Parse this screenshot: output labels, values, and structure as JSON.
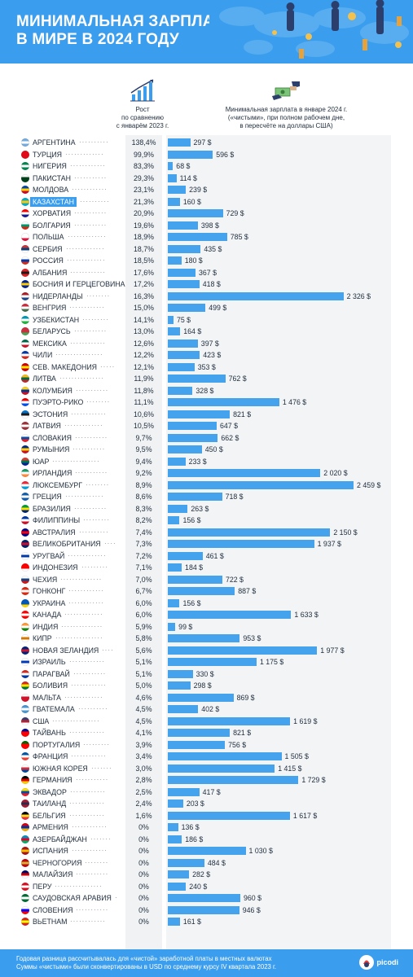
{
  "header": {
    "title_line1": "МИНИМАЛЬНАЯ ЗАРПЛАТА",
    "title_line2": "В МИРЕ В 2024 ГОДУ"
  },
  "columns": {
    "growth_label": "Рост\nпо сравнению\nс январём 2023 г.",
    "wage_label": "Минимальная зарплата в январе 2024 г.\n(«чистыми», при полном рабочем дне,\nв пересчёте на доллары США)"
  },
  "highlight_color": "#3b9ded",
  "bar_color": "#45a3ee",
  "chart_data": {
    "type": "bar",
    "x_max": 2459,
    "rows": [
      {
        "country": "АРГЕНТИНА",
        "growth": "138,4%",
        "wage": 297,
        "wage_label": "297 $",
        "flag": [
          "#74acdf",
          "#ffffff",
          "#74acdf"
        ]
      },
      {
        "country": "ТУРЦИЯ",
        "growth": "99,9%",
        "wage": 596,
        "wage_label": "596 $",
        "flag": [
          "#e30a17",
          "#e30a17",
          "#e30a17"
        ]
      },
      {
        "country": "НИГЕРИЯ",
        "growth": "83,3%",
        "wage": 68,
        "wage_label": "68 $",
        "flag": [
          "#008751",
          "#ffffff",
          "#008751"
        ]
      },
      {
        "country": "ПАКИСТАН",
        "growth": "29,3%",
        "wage": 114,
        "wage_label": "114 $",
        "flag": [
          "#ffffff",
          "#01411c",
          "#01411c"
        ]
      },
      {
        "country": "МОЛДОВА",
        "growth": "23,1%",
        "wage": 239,
        "wage_label": "239 $",
        "flag": [
          "#0046ae",
          "#ffd200",
          "#cc092f"
        ]
      },
      {
        "country": "КАЗАХСТАН",
        "growth": "21,3%",
        "wage": 160,
        "wage_label": "160 $",
        "highlight": true,
        "flag": [
          "#00afca",
          "#fec50c",
          "#00afca"
        ]
      },
      {
        "country": "ХОРВАТИЯ",
        "growth": "20,9%",
        "wage": 729,
        "wage_label": "729 $",
        "flag": [
          "#ff0000",
          "#ffffff",
          "#171796"
        ]
      },
      {
        "country": "БОЛГАРИЯ",
        "growth": "19,6%",
        "wage": 398,
        "wage_label": "398 $",
        "flag": [
          "#ffffff",
          "#00966e",
          "#d62612"
        ]
      },
      {
        "country": "ПОЛЬША",
        "growth": "18,9%",
        "wage": 785,
        "wage_label": "785 $",
        "flag": [
          "#ffffff",
          "#ffffff",
          "#dc143c"
        ]
      },
      {
        "country": "СЕРБИЯ",
        "growth": "18,7%",
        "wage": 435,
        "wage_label": "435 $",
        "flag": [
          "#c6363c",
          "#0c4076",
          "#ffffff"
        ]
      },
      {
        "country": "РОССИЯ",
        "growth": "18,5%",
        "wage": 180,
        "wage_label": "180 $",
        "flag": [
          "#ffffff",
          "#0039a6",
          "#d52b1e"
        ]
      },
      {
        "country": "АЛБАНИЯ",
        "growth": "17,6%",
        "wage": 367,
        "wage_label": "367 $",
        "flag": [
          "#e41e20",
          "#1a1a1a",
          "#e41e20"
        ]
      },
      {
        "country": "БОСНИЯ И ГЕРЦЕГОВИНА",
        "growth": "17,2%",
        "wage": 418,
        "wage_label": "418 $",
        "flag": [
          "#002395",
          "#fecb00",
          "#002395"
        ]
      },
      {
        "country": "НИДЕРЛАНДЫ",
        "growth": "16,3%",
        "wage": 2326,
        "wage_label": "2 326 $",
        "flag": [
          "#ae1c28",
          "#ffffff",
          "#21468b"
        ]
      },
      {
        "country": "ВЕНГРИЯ",
        "growth": "15,0%",
        "wage": 499,
        "wage_label": "499 $",
        "flag": [
          "#cd2a3e",
          "#ffffff",
          "#436f4d"
        ]
      },
      {
        "country": "УЗБЕКИСТАН",
        "growth": "14,1%",
        "wage": 75,
        "wage_label": "75 $",
        "flag": [
          "#0099b5",
          "#ffffff",
          "#1eb53a"
        ]
      },
      {
        "country": "БЕЛАРУСЬ",
        "growth": "13,0%",
        "wage": 164,
        "wage_label": "164 $",
        "flag": [
          "#c8313e",
          "#c8313e",
          "#4aa657"
        ]
      },
      {
        "country": "МЕКСИКА",
        "growth": "12,6%",
        "wage": 397,
        "wage_label": "397 $",
        "flag": [
          "#006847",
          "#ffffff",
          "#ce1126"
        ]
      },
      {
        "country": "ЧИЛИ",
        "growth": "12,2%",
        "wage": 423,
        "wage_label": "423 $",
        "flag": [
          "#0039a6",
          "#ffffff",
          "#d52b1e"
        ]
      },
      {
        "country": "СЕВ. МАКЕДОНИЯ",
        "growth": "12,1%",
        "wage": 353,
        "wage_label": "353 $",
        "flag": [
          "#d20000",
          "#ffe600",
          "#d20000"
        ]
      },
      {
        "country": "ЛИТВА",
        "growth": "11,9%",
        "wage": 762,
        "wage_label": "762 $",
        "flag": [
          "#fdb913",
          "#006a44",
          "#c1272d"
        ]
      },
      {
        "country": "КОЛУМБИЯ",
        "growth": "11,8%",
        "wage": 328,
        "wage_label": "328 $",
        "flag": [
          "#fcd116",
          "#003893",
          "#ce1126"
        ]
      },
      {
        "country": "ПУЭРТО-РИКО",
        "growth": "11,1%",
        "wage": 1476,
        "wage_label": "1 476 $",
        "flag": [
          "#ed0000",
          "#ffffff",
          "#0050f0"
        ]
      },
      {
        "country": "ЭСТОНИЯ",
        "growth": "10,6%",
        "wage": 821,
        "wage_label": "821 $",
        "flag": [
          "#0072ce",
          "#1a1a1a",
          "#ffffff"
        ]
      },
      {
        "country": "ЛАТВИЯ",
        "growth": "10,5%",
        "wage": 647,
        "wage_label": "647 $",
        "flag": [
          "#9e3039",
          "#ffffff",
          "#9e3039"
        ]
      },
      {
        "country": "СЛОВАКИЯ",
        "growth": "9,7%",
        "wage": 662,
        "wage_label": "662 $",
        "flag": [
          "#ffffff",
          "#0b4ea2",
          "#ee1c25"
        ]
      },
      {
        "country": "РУМЫНИЯ",
        "growth": "9,5%",
        "wage": 450,
        "wage_label": "450 $",
        "flag": [
          "#002b7f",
          "#fcd116",
          "#ce1126"
        ]
      },
      {
        "country": "ЮАР",
        "growth": "9,4%",
        "wage": 233,
        "wage_label": "233 $",
        "flag": [
          "#de3831",
          "#007a4d",
          "#002395"
        ]
      },
      {
        "country": "ИРЛАНДИЯ",
        "growth": "9,2%",
        "wage": 2020,
        "wage_label": "2 020 $",
        "flag": [
          "#169b62",
          "#ffffff",
          "#ff883e"
        ]
      },
      {
        "country": "ЛЮКСЕМБУРГ",
        "growth": "8,9%",
        "wage": 2459,
        "wage_label": "2 459 $",
        "flag": [
          "#ed2939",
          "#ffffff",
          "#00a1de"
        ]
      },
      {
        "country": "ГРЕЦИЯ",
        "growth": "8,6%",
        "wage": 718,
        "wage_label": "718 $",
        "flag": [
          "#0d5eaf",
          "#ffffff",
          "#0d5eaf"
        ]
      },
      {
        "country": "БРАЗИЛИЯ",
        "growth": "8,3%",
        "wage": 263,
        "wage_label": "263 $",
        "flag": [
          "#009c3b",
          "#ffdf00",
          "#002776"
        ]
      },
      {
        "country": "ФИЛИППИНЫ",
        "growth": "8,2%",
        "wage": 156,
        "wage_label": "156 $",
        "flag": [
          "#0038a8",
          "#ffffff",
          "#ce1126"
        ]
      },
      {
        "country": "АВСТРАЛИЯ",
        "growth": "7,4%",
        "wage": 2150,
        "wage_label": "2 150 $",
        "flag": [
          "#00008b",
          "#ff0000",
          "#00008b"
        ]
      },
      {
        "country": "ВЕЛИКОБРИТАНИЯ",
        "growth": "7,3%",
        "wage": 1937,
        "wage_label": "1 937 $",
        "flag": [
          "#012169",
          "#c8102e",
          "#012169"
        ]
      },
      {
        "country": "УРУГВАЙ",
        "growth": "7,2%",
        "wage": 461,
        "wage_label": "461 $",
        "flag": [
          "#ffffff",
          "#0038a8",
          "#ffffff"
        ]
      },
      {
        "country": "ИНДОНЕЗИЯ",
        "growth": "7,1%",
        "wage": 184,
        "wage_label": "184 $",
        "flag": [
          "#ff0000",
          "#ff0000",
          "#ffffff"
        ]
      },
      {
        "country": "ЧЕХИЯ",
        "growth": "7,0%",
        "wage": 722,
        "wage_label": "722 $",
        "flag": [
          "#ffffff",
          "#11457e",
          "#d7141a"
        ]
      },
      {
        "country": "ГОНКОНГ",
        "growth": "6,7%",
        "wage": 887,
        "wage_label": "887 $",
        "flag": [
          "#de2910",
          "#ffffff",
          "#de2910"
        ]
      },
      {
        "country": "УКРАИНА",
        "growth": "6,0%",
        "wage": 156,
        "wage_label": "156 $",
        "flag": [
          "#0057b7",
          "#0057b7",
          "#ffd700"
        ]
      },
      {
        "country": "КАНАДА",
        "growth": "6,0%",
        "wage": 1633,
        "wage_label": "1 633 $",
        "flag": [
          "#ff0000",
          "#ffffff",
          "#ff0000"
        ]
      },
      {
        "country": "ИНДИЯ",
        "growth": "5,9%",
        "wage": 99,
        "wage_label": "99 $",
        "flag": [
          "#ff9933",
          "#ffffff",
          "#138808"
        ]
      },
      {
        "country": "КИПР",
        "growth": "5,8%",
        "wage": 953,
        "wage_label": "953 $",
        "flag": [
          "#ffffff",
          "#d57800",
          "#ffffff"
        ]
      },
      {
        "country": "НОВАЯ ЗЕЛАНДИЯ",
        "growth": "5,6%",
        "wage": 1977,
        "wage_label": "1 977 $",
        "flag": [
          "#00247d",
          "#cc142b",
          "#00247d"
        ]
      },
      {
        "country": "ИЗРАИЛЬ",
        "growth": "5,1%",
        "wage": 1175,
        "wage_label": "1 175 $",
        "flag": [
          "#ffffff",
          "#0038b8",
          "#ffffff"
        ]
      },
      {
        "country": "ПАРАГВАЙ",
        "growth": "5,1%",
        "wage": 330,
        "wage_label": "330 $",
        "flag": [
          "#d52b1e",
          "#ffffff",
          "#0038a8"
        ]
      },
      {
        "country": "БОЛИВИЯ",
        "growth": "5,0%",
        "wage": 298,
        "wage_label": "298 $",
        "flag": [
          "#d52b1e",
          "#f9e300",
          "#007934"
        ]
      },
      {
        "country": "МАЛЬТА",
        "growth": "4,6%",
        "wage": 869,
        "wage_label": "869 $",
        "flag": [
          "#ffffff",
          "#cf142b",
          "#cf142b"
        ]
      },
      {
        "country": "ГВАТЕМАЛА",
        "growth": "4,5%",
        "wage": 402,
        "wage_label": "402 $",
        "flag": [
          "#4997d0",
          "#ffffff",
          "#4997d0"
        ]
      },
      {
        "country": "США",
        "growth": "4,5%",
        "wage": 1619,
        "wage_label": "1 619 $",
        "flag": [
          "#3c3b6e",
          "#b22234",
          "#ffffff"
        ]
      },
      {
        "country": "ТАЙВАНЬ",
        "growth": "4,1%",
        "wage": 821,
        "wage_label": "821 $",
        "flag": [
          "#000095",
          "#fe0000",
          "#fe0000"
        ]
      },
      {
        "country": "ПОРТУГАЛИЯ",
        "growth": "3,9%",
        "wage": 756,
        "wage_label": "756 $",
        "flag": [
          "#006600",
          "#ff0000",
          "#ff0000"
        ]
      },
      {
        "country": "ФРАНЦИЯ",
        "growth": "3,4%",
        "wage": 1505,
        "wage_label": "1 505 $",
        "flag": [
          "#0055a4",
          "#ffffff",
          "#ef4135"
        ]
      },
      {
        "country": "ЮЖНАЯ КОРЕЯ",
        "growth": "3,0%",
        "wage": 1415,
        "wage_label": "1 415 $",
        "flag": [
          "#ffffff",
          "#cd2e3a",
          "#0047a0"
        ]
      },
      {
        "country": "ГЕРМАНИЯ",
        "growth": "2,8%",
        "wage": 1729,
        "wage_label": "1 729 $",
        "flag": [
          "#000000",
          "#dd0000",
          "#ffce00"
        ]
      },
      {
        "country": "ЭКВАДОР",
        "growth": "2,5%",
        "wage": 417,
        "wage_label": "417 $",
        "flag": [
          "#ffdd00",
          "#034ea2",
          "#ed1c24"
        ]
      },
      {
        "country": "ТАИЛАНД",
        "growth": "2,4%",
        "wage": 203,
        "wage_label": "203 $",
        "flag": [
          "#a51931",
          "#2d2a4a",
          "#a51931"
        ]
      },
      {
        "country": "БЕЛЬГИЯ",
        "growth": "1,6%",
        "wage": 1617,
        "wage_label": "1 617 $",
        "flag": [
          "#000000",
          "#fdda24",
          "#ef3340"
        ]
      },
      {
        "country": "АРМЕНИЯ",
        "growth": "0%",
        "wage": 136,
        "wage_label": "136 $",
        "flag": [
          "#d90012",
          "#0033a0",
          "#f2a800"
        ]
      },
      {
        "country": "АЗЕРБАЙДЖАН",
        "growth": "0%",
        "wage": 186,
        "wage_label": "186 $",
        "flag": [
          "#0092bc",
          "#e4002b",
          "#00af66"
        ]
      },
      {
        "country": "ИСПАНИЯ",
        "growth": "0%",
        "wage": 1030,
        "wage_label": "1 030 $",
        "flag": [
          "#aa151b",
          "#f1bf00",
          "#aa151b"
        ]
      },
      {
        "country": "ЧЕРНОГОРИЯ",
        "growth": "0%",
        "wage": 484,
        "wage_label": "484 $",
        "flag": [
          "#c40308",
          "#d4af3a",
          "#c40308"
        ]
      },
      {
        "country": "МАЛАЙЗИЯ",
        "growth": "0%",
        "wage": 282,
        "wage_label": "282 $",
        "flag": [
          "#010066",
          "#cc0001",
          "#ffffff"
        ]
      },
      {
        "country": "ПЕРУ",
        "growth": "0%",
        "wage": 240,
        "wage_label": "240 $",
        "flag": [
          "#d91023",
          "#ffffff",
          "#d91023"
        ]
      },
      {
        "country": "САУДОВСКАЯ АРАВИЯ",
        "growth": "0%",
        "wage": 960,
        "wage_label": "960 $",
        "flag": [
          "#006c35",
          "#ffffff",
          "#006c35"
        ]
      },
      {
        "country": "СЛОВЕНИЯ",
        "growth": "0%",
        "wage": 946,
        "wage_label": "946 $",
        "flag": [
          "#ffffff",
          "#0000ff",
          "#ff0000"
        ]
      },
      {
        "country": "ВЬЕТНАМ",
        "growth": "0%",
        "wage": 161,
        "wage_label": "161 $",
        "flag": [
          "#da251d",
          "#ffff00",
          "#da251d"
        ]
      }
    ]
  },
  "footer": {
    "line1": "Годовая разница рассчитывалась для «чистой» заработной платы в местных валютах",
    "line2": "Суммы «чистыми» были сконвертированы в USD по среднему курсу IV квартала 2023 г.",
    "logo_text": "picodi"
  }
}
